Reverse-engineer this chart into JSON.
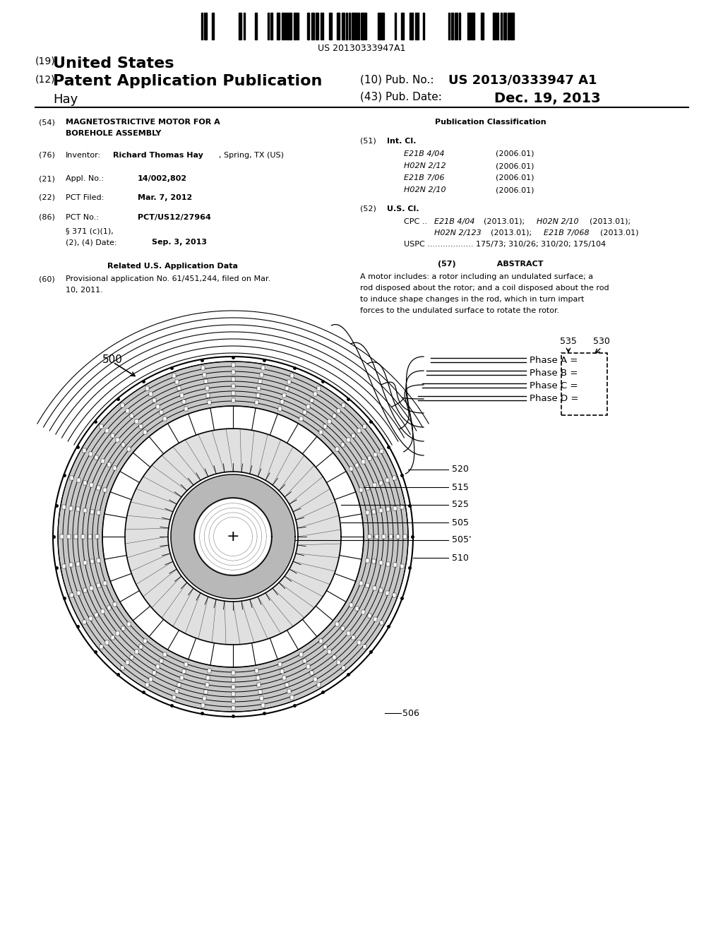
{
  "bg_color": "#ffffff",
  "text_color": "#000000",
  "barcode_text": "US 20130333947A1",
  "title_19": "(19) United States",
  "title_12": "(12) Patent Application Publication",
  "inventor_name": "Hay",
  "pub_no_label": "(10) Pub. No.:",
  "pub_no_value": "US 2013/0333947 A1",
  "pub_date_label": "(43) Pub. Date:",
  "pub_date_value": "Dec. 19, 2013",
  "diagram_label_500": "500",
  "diagram_label_530": "530",
  "diagram_label_535": "535",
  "diagram_labels_phase": [
    "Phase A =",
    "Phase B =",
    "Phase C =",
    "Phase D ="
  ],
  "diagram_label_520": "520",
  "diagram_label_515": "515",
  "diagram_label_525": "525",
  "diagram_label_505": "505",
  "diagram_label_505p": "505'",
  "diagram_label_510": "510",
  "diagram_label_506": "506",
  "int_cl_items": [
    [
      "E21B 4/04",
      "(2006.01)"
    ],
    [
      "H02N 2/12",
      "(2006.01)"
    ],
    [
      "E21B 7/06",
      "(2006.01)"
    ],
    [
      "H02N 2/10",
      "(2006.01)"
    ]
  ],
  "abstract_text": "A motor includes: a rotor including an undulated surface; a\nrod disposed about the rotor; and a coil disposed about the rod\nto induce shape changes in the rod, which in turn impart\nforces to the undulated surface to rotate the rotor."
}
